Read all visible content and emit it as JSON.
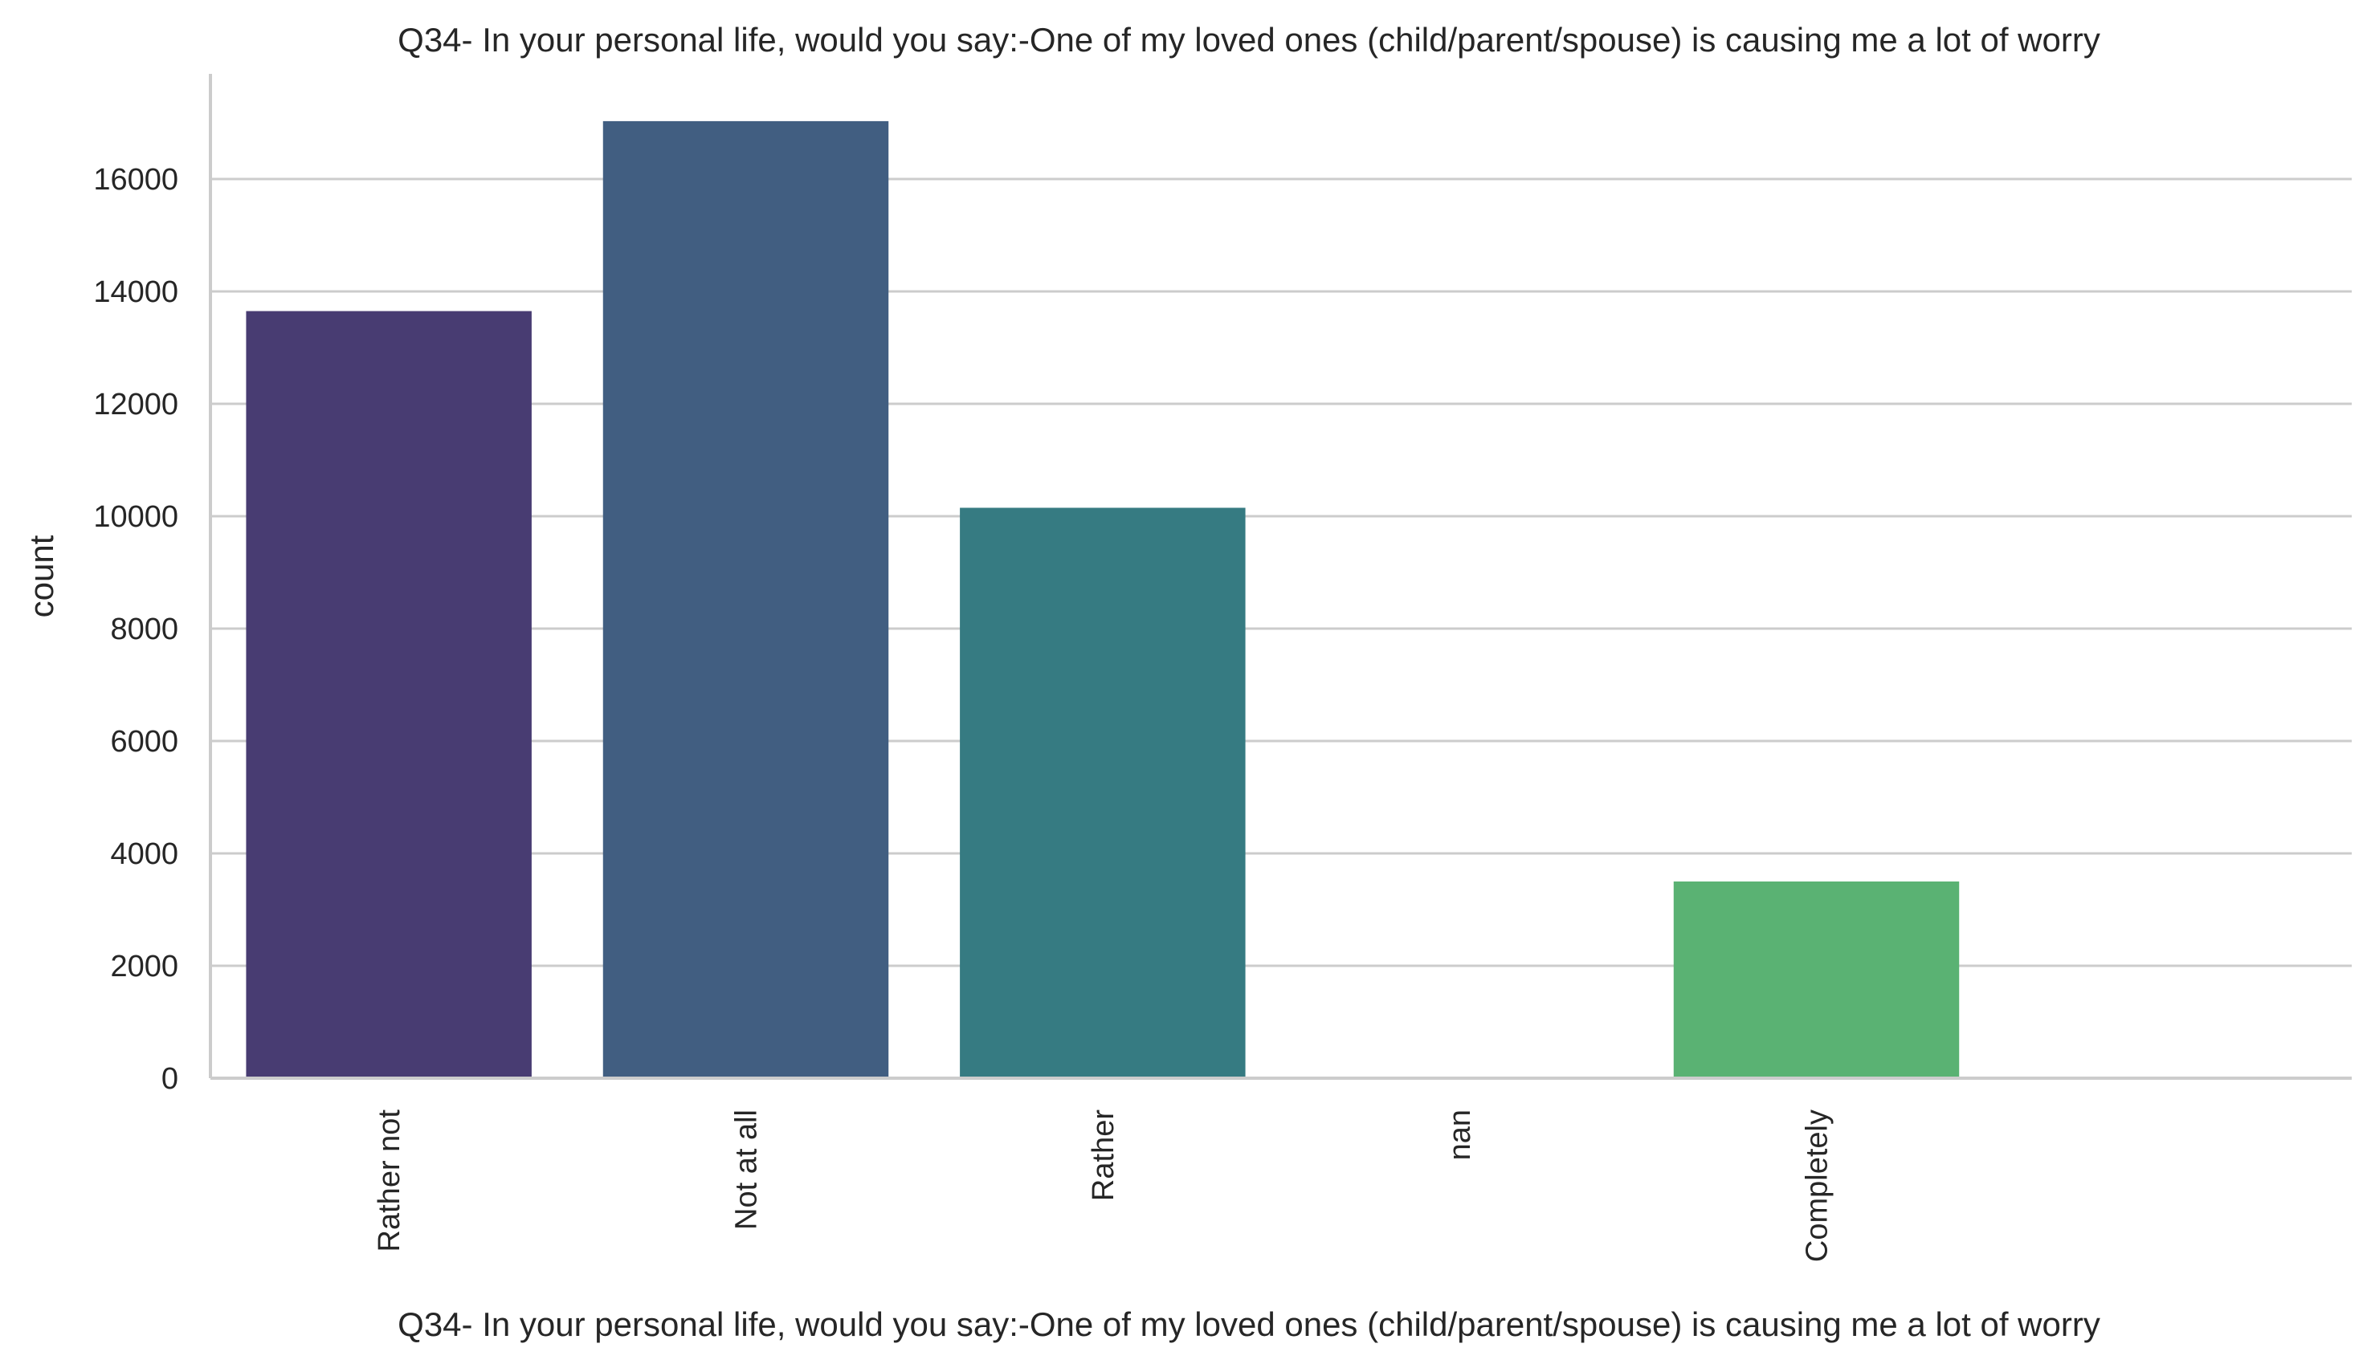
{
  "chart_data": {
    "type": "bar",
    "title": "Q34- In your personal life, would you say:-One of my loved ones (child/parent/spouse) is causing me a lot of worry",
    "xlabel": "Q34- In your personal life, would you say:-One of my loved ones (child/parent/spouse) is causing me a lot of worry",
    "ylabel": "count",
    "categories": [
      "Rather not",
      "Not at all",
      "Rather",
      "nan",
      "Completely",
      ""
    ],
    "values": [
      13650,
      17030,
      10150,
      0,
      3500,
      0
    ],
    "colors": [
      "#483c72",
      "#415e81",
      "#367b82",
      "#46a67a",
      "#5ab273",
      "#7fbf6a"
    ],
    "ylim": [
      0,
      18000
    ],
    "yticks": [
      0,
      2000,
      4000,
      6000,
      8000,
      10000,
      12000,
      14000,
      16000
    ],
    "ytick_labels": [
      "0",
      "2000",
      "4000",
      "6000",
      "8000",
      "10000",
      "12000",
      "14000",
      "16000"
    ],
    "grid": true,
    "grid_color": "#cccccc",
    "axis_color": "#cccccc",
    "legend": "none"
  }
}
